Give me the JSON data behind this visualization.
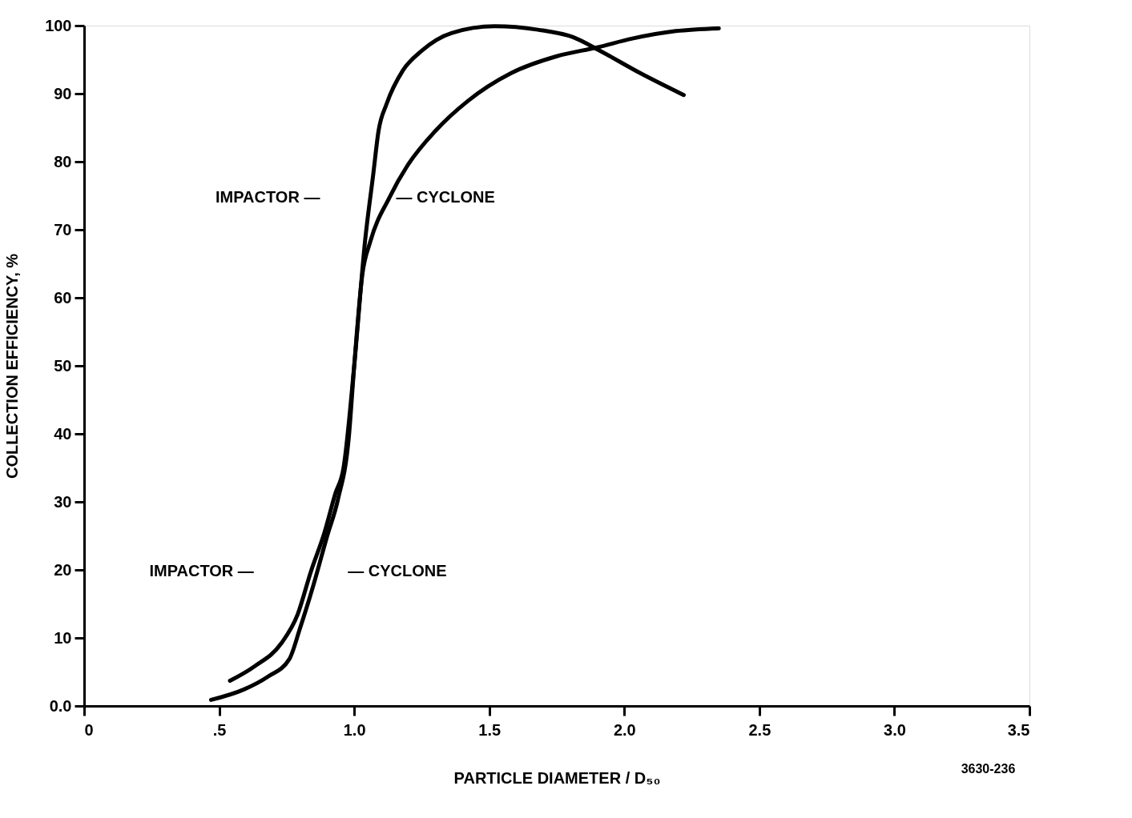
{
  "chart_data": {
    "type": "line",
    "xlabel": "PARTICLE DIAMETER / D₅₀",
    "ylabel": "COLLECTION EFFICIENCY, %",
    "xlim": [
      0,
      3.5
    ],
    "ylim": [
      0,
      100
    ],
    "xticks": [
      {
        "value": 0,
        "label": "0"
      },
      {
        "value": 0.5,
        "label": ".5"
      },
      {
        "value": 1.0,
        "label": "1.0"
      },
      {
        "value": 1.5,
        "label": "1.5"
      },
      {
        "value": 2.0,
        "label": "2.0"
      },
      {
        "value": 2.5,
        "label": "2.5"
      },
      {
        "value": 3.0,
        "label": "3.0"
      },
      {
        "value": 3.5,
        "label": "3.5"
      }
    ],
    "yticks": [
      {
        "value": 0,
        "label": "0.0"
      },
      10,
      20,
      30,
      40,
      50,
      60,
      70,
      80,
      90,
      100
    ],
    "grid": false,
    "marker": "none",
    "line_style": "solid",
    "series": [
      {
        "color": "#000000",
        "x": [
          0.54,
          0.63,
          0.73,
          0.79,
          0.84,
          0.89,
          0.93,
          0.96,
          1.0,
          1.04,
          1.07,
          1.09,
          1.12,
          1.18,
          1.25,
          1.36,
          1.52,
          1.68,
          1.81,
          1.91,
          2.06,
          2.22
        ],
        "values": [
          3.7,
          5.8,
          9.2,
          13.4,
          19.8,
          25.5,
          31.2,
          34.9,
          50,
          68.3,
          78,
          84.5,
          88.5,
          93.4,
          96.3,
          98.9,
          99.9,
          99.4,
          98.3,
          96.3,
          93,
          89.8
        ]
      },
      {
        "color": "#000000",
        "x": [
          0.47,
          0.59,
          0.68,
          0.76,
          0.8,
          0.85,
          0.9,
          0.94,
          0.98,
          1.0,
          1.03,
          1.06,
          1.13,
          1.2,
          1.3,
          1.42,
          1.58,
          1.75,
          1.9,
          2.03,
          2.19,
          2.35
        ],
        "values": [
          0.9,
          2.4,
          4.3,
          6.9,
          11.5,
          17.9,
          25,
          30.4,
          39.5,
          50,
          63.4,
          68.3,
          74.7,
          79.6,
          84.5,
          88.9,
          93,
          95.5,
          96.8,
          98.1,
          99.2,
          99.6
        ]
      }
    ],
    "annotations": [
      "IMPACTOR —",
      "— CYCLONE",
      "IMPACTOR —",
      "— CYCLONE",
      "3630-236"
    ]
  }
}
